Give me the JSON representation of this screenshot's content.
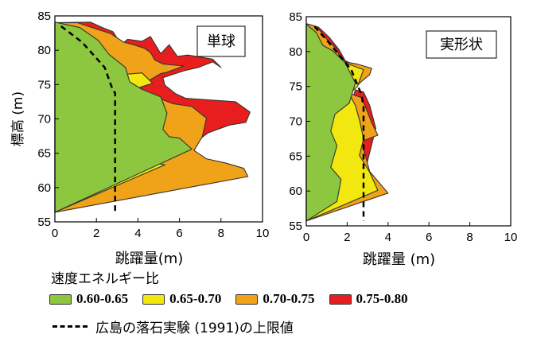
{
  "chart_data": [
    {
      "type": "area",
      "title": "単球",
      "xlabel": "跳躍量(m)",
      "ylabel": "標高 (m)",
      "xlim": [
        0,
        10
      ],
      "ylim": [
        55,
        85
      ],
      "xticks": [
        "0",
        "2",
        "4",
        "6",
        "8",
        "10"
      ],
      "yticks": [
        "55",
        "60",
        "65",
        "70",
        "75",
        "80",
        "85"
      ],
      "series": [
        {
          "name": "0.75-0.80",
          "color": "#e81e1e",
          "points": [
            [
              0,
              56.4
            ],
            [
              6.5,
              66
            ],
            [
              7.4,
              68
            ],
            [
              8.4,
              69.1
            ],
            [
              9.2,
              69.5
            ],
            [
              9.4,
              71
            ],
            [
              8.7,
              72.5
            ],
            [
              6.8,
              72.9
            ],
            [
              6.3,
              73
            ],
            [
              5.8,
              73.7
            ],
            [
              5.3,
              74.9
            ],
            [
              5.2,
              76
            ],
            [
              6.2,
              77
            ],
            [
              6.9,
              77.5
            ],
            [
              7.6,
              78.3
            ],
            [
              8,
              77.5
            ],
            [
              7.6,
              78.7
            ],
            [
              6.4,
              79.3
            ],
            [
              5.9,
              79.1
            ],
            [
              5.5,
              80.8
            ],
            [
              5.1,
              79.5
            ],
            [
              4.6,
              82
            ],
            [
              4.2,
              81.3
            ],
            [
              3.5,
              81.6
            ],
            [
              3.2,
              80.8
            ],
            [
              2.8,
              82.7
            ],
            [
              2.3,
              83.3
            ],
            [
              1.7,
              84.1
            ],
            [
              0,
              84
            ]
          ]
        },
        {
          "name": "0.70-0.75",
          "color": "#f0a218",
          "points": [
            [
              0,
              56.4
            ],
            [
              9.3,
              61.6
            ],
            [
              9.1,
              62.8
            ],
            [
              8.2,
              63.6
            ],
            [
              7.3,
              64.2
            ],
            [
              6.7,
              65.4
            ],
            [
              7.1,
              67.4
            ],
            [
              7.3,
              70.1
            ],
            [
              6.6,
              71.8
            ],
            [
              5.7,
              72.2
            ],
            [
              5.1,
              72.9
            ],
            [
              4.2,
              72.8
            ],
            [
              4.1,
              74.9
            ],
            [
              4.7,
              75.9
            ],
            [
              5.1,
              76.6
            ],
            [
              5.4,
              76.8
            ],
            [
              6.2,
              77.7
            ],
            [
              5.2,
              78
            ],
            [
              4.8,
              78.6
            ],
            [
              4.7,
              79.2
            ],
            [
              4.6,
              79.7
            ],
            [
              4.3,
              80.3
            ],
            [
              3.8,
              80.8
            ],
            [
              3.3,
              81.2
            ],
            [
              2.7,
              82.4
            ],
            [
              1.8,
              83.3
            ],
            [
              1.1,
              84
            ],
            [
              0,
              84
            ]
          ]
        },
        {
          "name": "0.65-0.70",
          "color": "#f2e810",
          "points": [
            [
              0,
              56.4
            ],
            [
              5.3,
              63.3
            ],
            [
              4.2,
              64
            ],
            [
              4.5,
              66.1
            ],
            [
              4.8,
              67.9
            ],
            [
              4.6,
              70
            ],
            [
              4.3,
              72.3
            ],
            [
              4.1,
              74.6
            ],
            [
              4.7,
              75.2
            ],
            [
              4.2,
              76.7
            ],
            [
              3.4,
              76.5
            ],
            [
              2.9,
              77
            ],
            [
              2.6,
              78.6
            ],
            [
              1.5,
              80.1
            ],
            [
              1,
              81.5
            ],
            [
              0.6,
              83.7
            ],
            [
              0,
              84
            ]
          ]
        },
        {
          "name": "0.60-0.65",
          "color": "#8dc63f",
          "points": [
            [
              0,
              56.4
            ],
            [
              6.6,
              65.6
            ],
            [
              6,
              67.2
            ],
            [
              5.5,
              67.4
            ],
            [
              5.2,
              68.5
            ],
            [
              5.4,
              70.8
            ],
            [
              5.1,
              73.2
            ],
            [
              4.2,
              74.3
            ],
            [
              3.6,
              75.4
            ],
            [
              3.4,
              77.5
            ],
            [
              2.6,
              79.4
            ],
            [
              2.1,
              81.4
            ],
            [
              1.2,
              83.3
            ],
            [
              0,
              84.1
            ]
          ]
        }
      ],
      "limit_line": [
        [
          0.3,
          83.5
        ],
        [
          1.3,
          81.2
        ],
        [
          2.4,
          77.5
        ],
        [
          2.8,
          74.1
        ],
        [
          2.9,
          73.8
        ],
        [
          2.9,
          56.4
        ]
      ]
    },
    {
      "type": "area",
      "title": "実形状",
      "xlabel": "跳躍量 (m)",
      "ylabel": "",
      "xlim": [
        0,
        10
      ],
      "ylim": [
        55,
        85
      ],
      "xticks": [
        "0",
        "2",
        "4",
        "6",
        "8",
        "10"
      ],
      "yticks": [
        "55",
        "60",
        "65",
        "70",
        "75",
        "80",
        "85"
      ],
      "series": [
        {
          "name": "0.75-0.80",
          "color": "#e81e1e",
          "points": [
            [
              0,
              55.7
            ],
            [
              2.8,
              62
            ],
            [
              3.4,
              69
            ],
            [
              3.1,
              72.3
            ],
            [
              2.8,
              74.2
            ],
            [
              2.4,
              74.5
            ],
            [
              2.3,
              73.5
            ],
            [
              1.8,
              73.4
            ],
            [
              2.4,
              75.2
            ],
            [
              2.8,
              76.4
            ],
            [
              3,
              77.6
            ],
            [
              2.4,
              78
            ],
            [
              1.9,
              78.7
            ],
            [
              1.6,
              80.3
            ],
            [
              1.1,
              82.1
            ],
            [
              0.6,
              83.5
            ],
            [
              0,
              84
            ]
          ]
        },
        {
          "name": "0.70-0.75",
          "color": "#f0a218",
          "points": [
            [
              0,
              55.7
            ],
            [
              4,
              59.7
            ],
            [
              3.1,
              62.8
            ],
            [
              2.9,
              65
            ],
            [
              2.7,
              67.1
            ],
            [
              3.5,
              68
            ],
            [
              3.2,
              69.8
            ],
            [
              3,
              71.3
            ],
            [
              2.7,
              73.4
            ],
            [
              2.1,
              74
            ],
            [
              2.7,
              75.7
            ],
            [
              3.1,
              76.7
            ],
            [
              3.2,
              77.6
            ],
            [
              2.5,
              78.2
            ],
            [
              1.7,
              78.6
            ],
            [
              1.5,
              80.3
            ],
            [
              1,
              81.8
            ],
            [
              0.5,
              83.6
            ],
            [
              0,
              84
            ]
          ]
        },
        {
          "name": "0.65-0.70",
          "color": "#f2e810",
          "points": [
            [
              0,
              55.7
            ],
            [
              3.5,
              60.1
            ],
            [
              3.1,
              62.7
            ],
            [
              2.6,
              65.1
            ],
            [
              2.8,
              67.5
            ],
            [
              2.6,
              70.2
            ],
            [
              2.4,
              72.3
            ],
            [
              2.1,
              73.9
            ],
            [
              2.5,
              75
            ],
            [
              2.8,
              77.4
            ],
            [
              1.8,
              78.5
            ],
            [
              0.8,
              80.9
            ],
            [
              0.4,
              82.8
            ],
            [
              0,
              83.9
            ]
          ]
        },
        {
          "name": "0.60-0.65",
          "color": "#8dc63f",
          "points": [
            [
              0,
              55.7
            ],
            [
              1.5,
              58.5
            ],
            [
              1.7,
              61.7
            ],
            [
              1.2,
              63.4
            ],
            [
              1.5,
              66.5
            ],
            [
              1.2,
              68.6
            ],
            [
              1.4,
              71
            ],
            [
              2.1,
              72.6
            ],
            [
              2.4,
              75.5
            ],
            [
              1.9,
              78.4
            ],
            [
              1.3,
              80.1
            ],
            [
              0.8,
              80.9
            ],
            [
              0.5,
              82.7
            ],
            [
              0,
              83.9
            ]
          ]
        }
      ],
      "limit_line": [
        [
          0.4,
          83.6
        ],
        [
          1.1,
          81.3
        ],
        [
          2.2,
          77.4
        ],
        [
          2.7,
          73.8
        ],
        [
          2.8,
          72
        ],
        [
          2.8,
          55.7
        ]
      ]
    }
  ],
  "legend": {
    "title": "速度エネルギー比",
    "items": [
      {
        "label": "0.60-0.65",
        "color": "#8dc63f"
      },
      {
        "label": "0.65-0.70",
        "color": "#f2e810"
      },
      {
        "label": "0.70-0.75",
        "color": "#f0a218"
      },
      {
        "label": "0.75-0.80",
        "color": "#e81e1e"
      }
    ],
    "reference_line_label": "広島の落石実験 (1991)の上限値"
  }
}
